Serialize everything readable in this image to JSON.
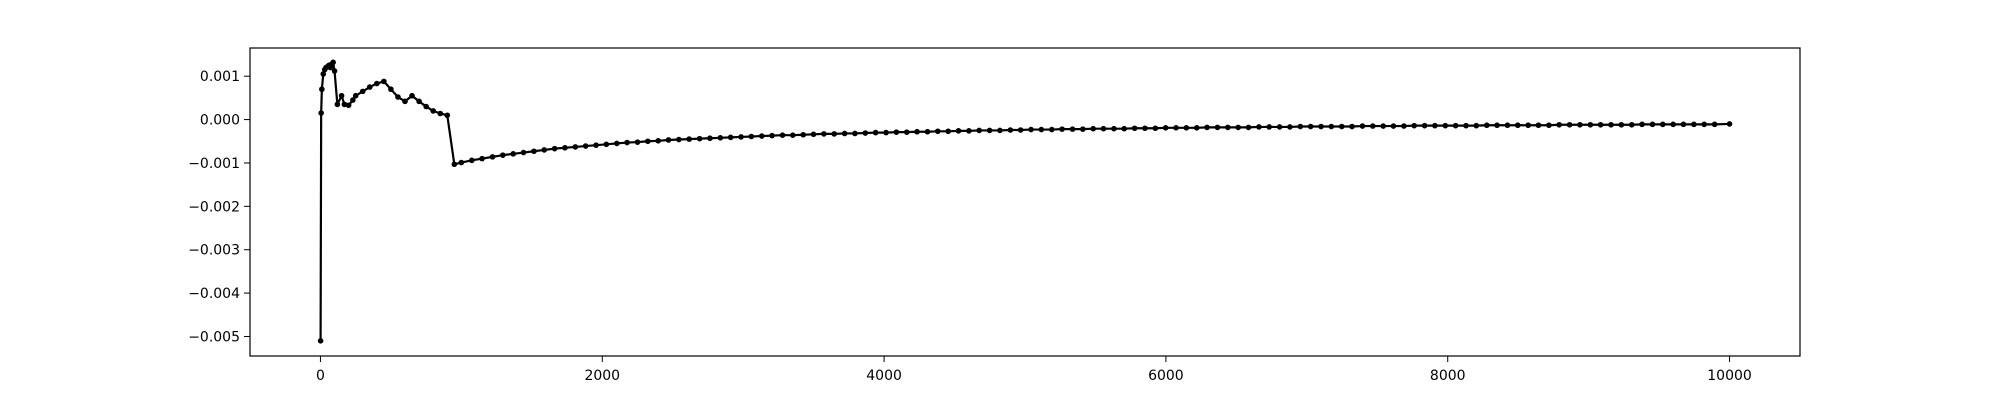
{
  "chart_data": {
    "type": "line",
    "title": "",
    "xlabel": "",
    "ylabel": "",
    "xlim": [
      -500,
      10500
    ],
    "ylim": [
      -0.00545,
      0.00165
    ],
    "x_ticks": [
      0,
      2000,
      4000,
      6000,
      8000,
      10000
    ],
    "x_tick_labels": [
      "0",
      "2000",
      "4000",
      "6000",
      "8000",
      "10000"
    ],
    "y_ticks": [
      0.001,
      0.0,
      -0.001,
      -0.002,
      -0.003,
      -0.004,
      -0.005
    ],
    "y_tick_labels": [
      "0.001",
      "0.000",
      "−0.001",
      "−0.002",
      "−0.003",
      "−0.004",
      "−0.005"
    ],
    "grid": false,
    "legend": "none",
    "colors": {
      "series": "#000000",
      "axes": "#000000",
      "background": "#ffffff"
    },
    "series": [
      {
        "marker": "circle",
        "x": [
          1,
          5,
          10,
          20,
          30,
          40,
          50,
          60,
          70,
          80,
          90,
          100,
          120,
          150,
          170,
          200,
          230,
          250,
          300,
          350,
          400,
          450,
          500,
          550,
          600,
          650,
          700,
          750,
          800,
          850,
          900,
          950,
          1000,
          1074,
          1147,
          1221,
          1294,
          1368,
          1441,
          1515,
          1588,
          1662,
          1735,
          1809,
          1882,
          1956,
          2029,
          2103,
          2176,
          2250,
          2323,
          2397,
          2470,
          2544,
          2617,
          2691,
          2764,
          2838,
          2911,
          2985,
          3058,
          3132,
          3205,
          3279,
          3352,
          3426,
          3499,
          3573,
          3646,
          3720,
          3793,
          3867,
          3940,
          4014,
          4087,
          4161,
          4234,
          4308,
          4381,
          4455,
          4528,
          4602,
          4675,
          4749,
          4822,
          4896,
          4969,
          5043,
          5116,
          5190,
          5263,
          5337,
          5410,
          5484,
          5557,
          5631,
          5704,
          5778,
          5851,
          5925,
          5998,
          6072,
          6145,
          6219,
          6292,
          6366,
          6439,
          6513,
          6586,
          6660,
          6733,
          6807,
          6880,
          6954,
          7027,
          7101,
          7174,
          7248,
          7321,
          7395,
          7468,
          7542,
          7615,
          7689,
          7762,
          7836,
          7909,
          7983,
          8056,
          8130,
          8203,
          8277,
          8350,
          8424,
          8497,
          8571,
          8644,
          8718,
          8791,
          8865,
          8938,
          9012,
          9085,
          9159,
          9232,
          9306,
          9379,
          9453,
          9526,
          9600,
          9673,
          9747,
          9820,
          9894,
          10000
        ],
        "y": [
          -0.0051,
          0.00015,
          0.0007,
          0.00105,
          0.00115,
          0.0012,
          0.00122,
          0.00125,
          0.0012,
          0.00128,
          0.00132,
          0.00112,
          0.00035,
          0.00055,
          0.00035,
          0.00033,
          0.00045,
          0.00055,
          0.00065,
          0.00075,
          0.00083,
          0.00088,
          0.0007,
          0.00052,
          0.00042,
          0.00055,
          0.00042,
          0.0003,
          0.0002,
          0.00014,
          0.0001,
          -0.00103,
          -0.00099,
          -0.00094,
          -0.0009,
          -0.00086,
          -0.00082,
          -0.00079,
          -0.00076,
          -0.00073,
          -0.0007,
          -0.00067,
          -0.00065,
          -0.00063,
          -0.00061,
          -0.00059,
          -0.00057,
          -0.00055,
          -0.00053,
          -0.00052,
          -0.0005,
          -0.00049,
          -0.00047,
          -0.00046,
          -0.00045,
          -0.00044,
          -0.00043,
          -0.00042,
          -0.00041,
          -0.0004,
          -0.00039,
          -0.00038,
          -0.00037,
          -0.00036,
          -0.00036,
          -0.00035,
          -0.00034,
          -0.00033,
          -0.00033,
          -0.00032,
          -0.00032,
          -0.00031,
          -0.0003,
          -0.0003,
          -0.00029,
          -0.00029,
          -0.00028,
          -0.00028,
          -0.00027,
          -0.00027,
          -0.00026,
          -0.00026,
          -0.00025,
          -0.00025,
          -0.00025,
          -0.00024,
          -0.00024,
          -0.00023,
          -0.00023,
          -0.00023,
          -0.00022,
          -0.00022,
          -0.00022,
          -0.00021,
          -0.00021,
          -0.00021,
          -0.00021,
          -0.0002,
          -0.0002,
          -0.0002,
          -0.00019,
          -0.00019,
          -0.00019,
          -0.00019,
          -0.00018,
          -0.00018,
          -0.00018,
          -0.00018,
          -0.00018,
          -0.00017,
          -0.00017,
          -0.00017,
          -0.00017,
          -0.00016,
          -0.00016,
          -0.00016,
          -0.00016,
          -0.00016,
          -0.00016,
          -0.00015,
          -0.00015,
          -0.00015,
          -0.00015,
          -0.00015,
          -0.00014,
          -0.00014,
          -0.00014,
          -0.00014,
          -0.00014,
          -0.00014,
          -0.00014,
          -0.00013,
          -0.00013,
          -0.00013,
          -0.00013,
          -0.00013,
          -0.00013,
          -0.00013,
          -0.00012,
          -0.00012,
          -0.00012,
          -0.00012,
          -0.00012,
          -0.00012,
          -0.00012,
          -0.00012,
          -0.00011,
          -0.00011,
          -0.00011,
          -0.00011,
          -0.00011,
          -0.00011,
          -0.00011,
          -0.00011,
          -0.0001
        ]
      }
    ]
  }
}
